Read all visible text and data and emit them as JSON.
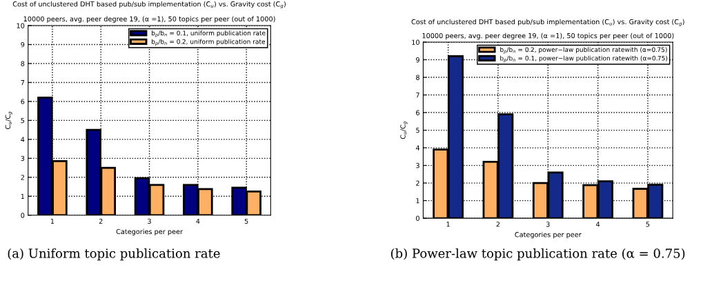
{
  "chart_data": [
    {
      "type": "bar",
      "title": "Cost of unclustered DHT based pub/sub implementation (C$_{u}$) vs. Gravity cost (C$_{g}$)",
      "subtitle": "10000 peers, avg. peer degree 19, (α =1), 50 topics per peer (out of 1000)",
      "xlabel": "Categories per peer",
      "ylabel": "C$_{u}$/C$_{g}$",
      "categories": [
        "1",
        "2",
        "3",
        "4",
        "5"
      ],
      "series": [
        {
          "name": "b$_{p}$/b$_{n}$ = 0.1, uniform publication rate",
          "color": "#000080",
          "values": [
            6.2,
            4.5,
            1.95,
            1.6,
            1.45
          ]
        },
        {
          "name": "b$_{p}$/b$_{n}$ = 0.2, uniform publication rate",
          "color": "#ffb062",
          "values": [
            2.85,
            2.5,
            1.6,
            1.38,
            1.25
          ]
        }
      ],
      "ylim": [
        0,
        10
      ],
      "yticks": [
        0,
        1,
        2,
        3,
        4,
        5,
        6,
        7,
        8,
        9,
        10
      ],
      "grid": true,
      "legend": "top right",
      "annotations": [
        "(a) Uniform topic publication rate"
      ]
    },
    {
      "type": "bar",
      "title": "Cost of unclustered DHT based pub/sub implementation (C$_{u}$) vs. Gravity cost (C$_{g}$)",
      "subtitle": "10000 peers, avg. peer degree 19, (α =1), 50 topics per peer (out of 1000)",
      "xlabel": "Categories per peer",
      "ylabel": "C$_{u}$/C$_{g}$",
      "categories": [
        "1",
        "2",
        "3",
        "4",
        "5"
      ],
      "series": [
        {
          "name": "b$_{p}$/b$_{n}$ = 0.2, power−law publication ratewith (α=0.75)",
          "color": "#ffb062",
          "values": [
            3.9,
            3.2,
            2.0,
            1.88,
            1.67
          ]
        },
        {
          "name": "b$_{p}$/b$_{n}$ = 0.1, power−law publication ratewith (α=0.75)",
          "color": "#142a8a",
          "values": [
            9.2,
            5.9,
            2.6,
            2.1,
            1.9
          ]
        }
      ],
      "ylim": [
        0,
        10
      ],
      "yticks": [
        0,
        1,
        2,
        3,
        4,
        5,
        6,
        7,
        8,
        9,
        10
      ],
      "grid": true,
      "legend": "top right",
      "annotations": [
        "(b) Power-law topic publication rate (α = 0.75)"
      ]
    }
  ]
}
